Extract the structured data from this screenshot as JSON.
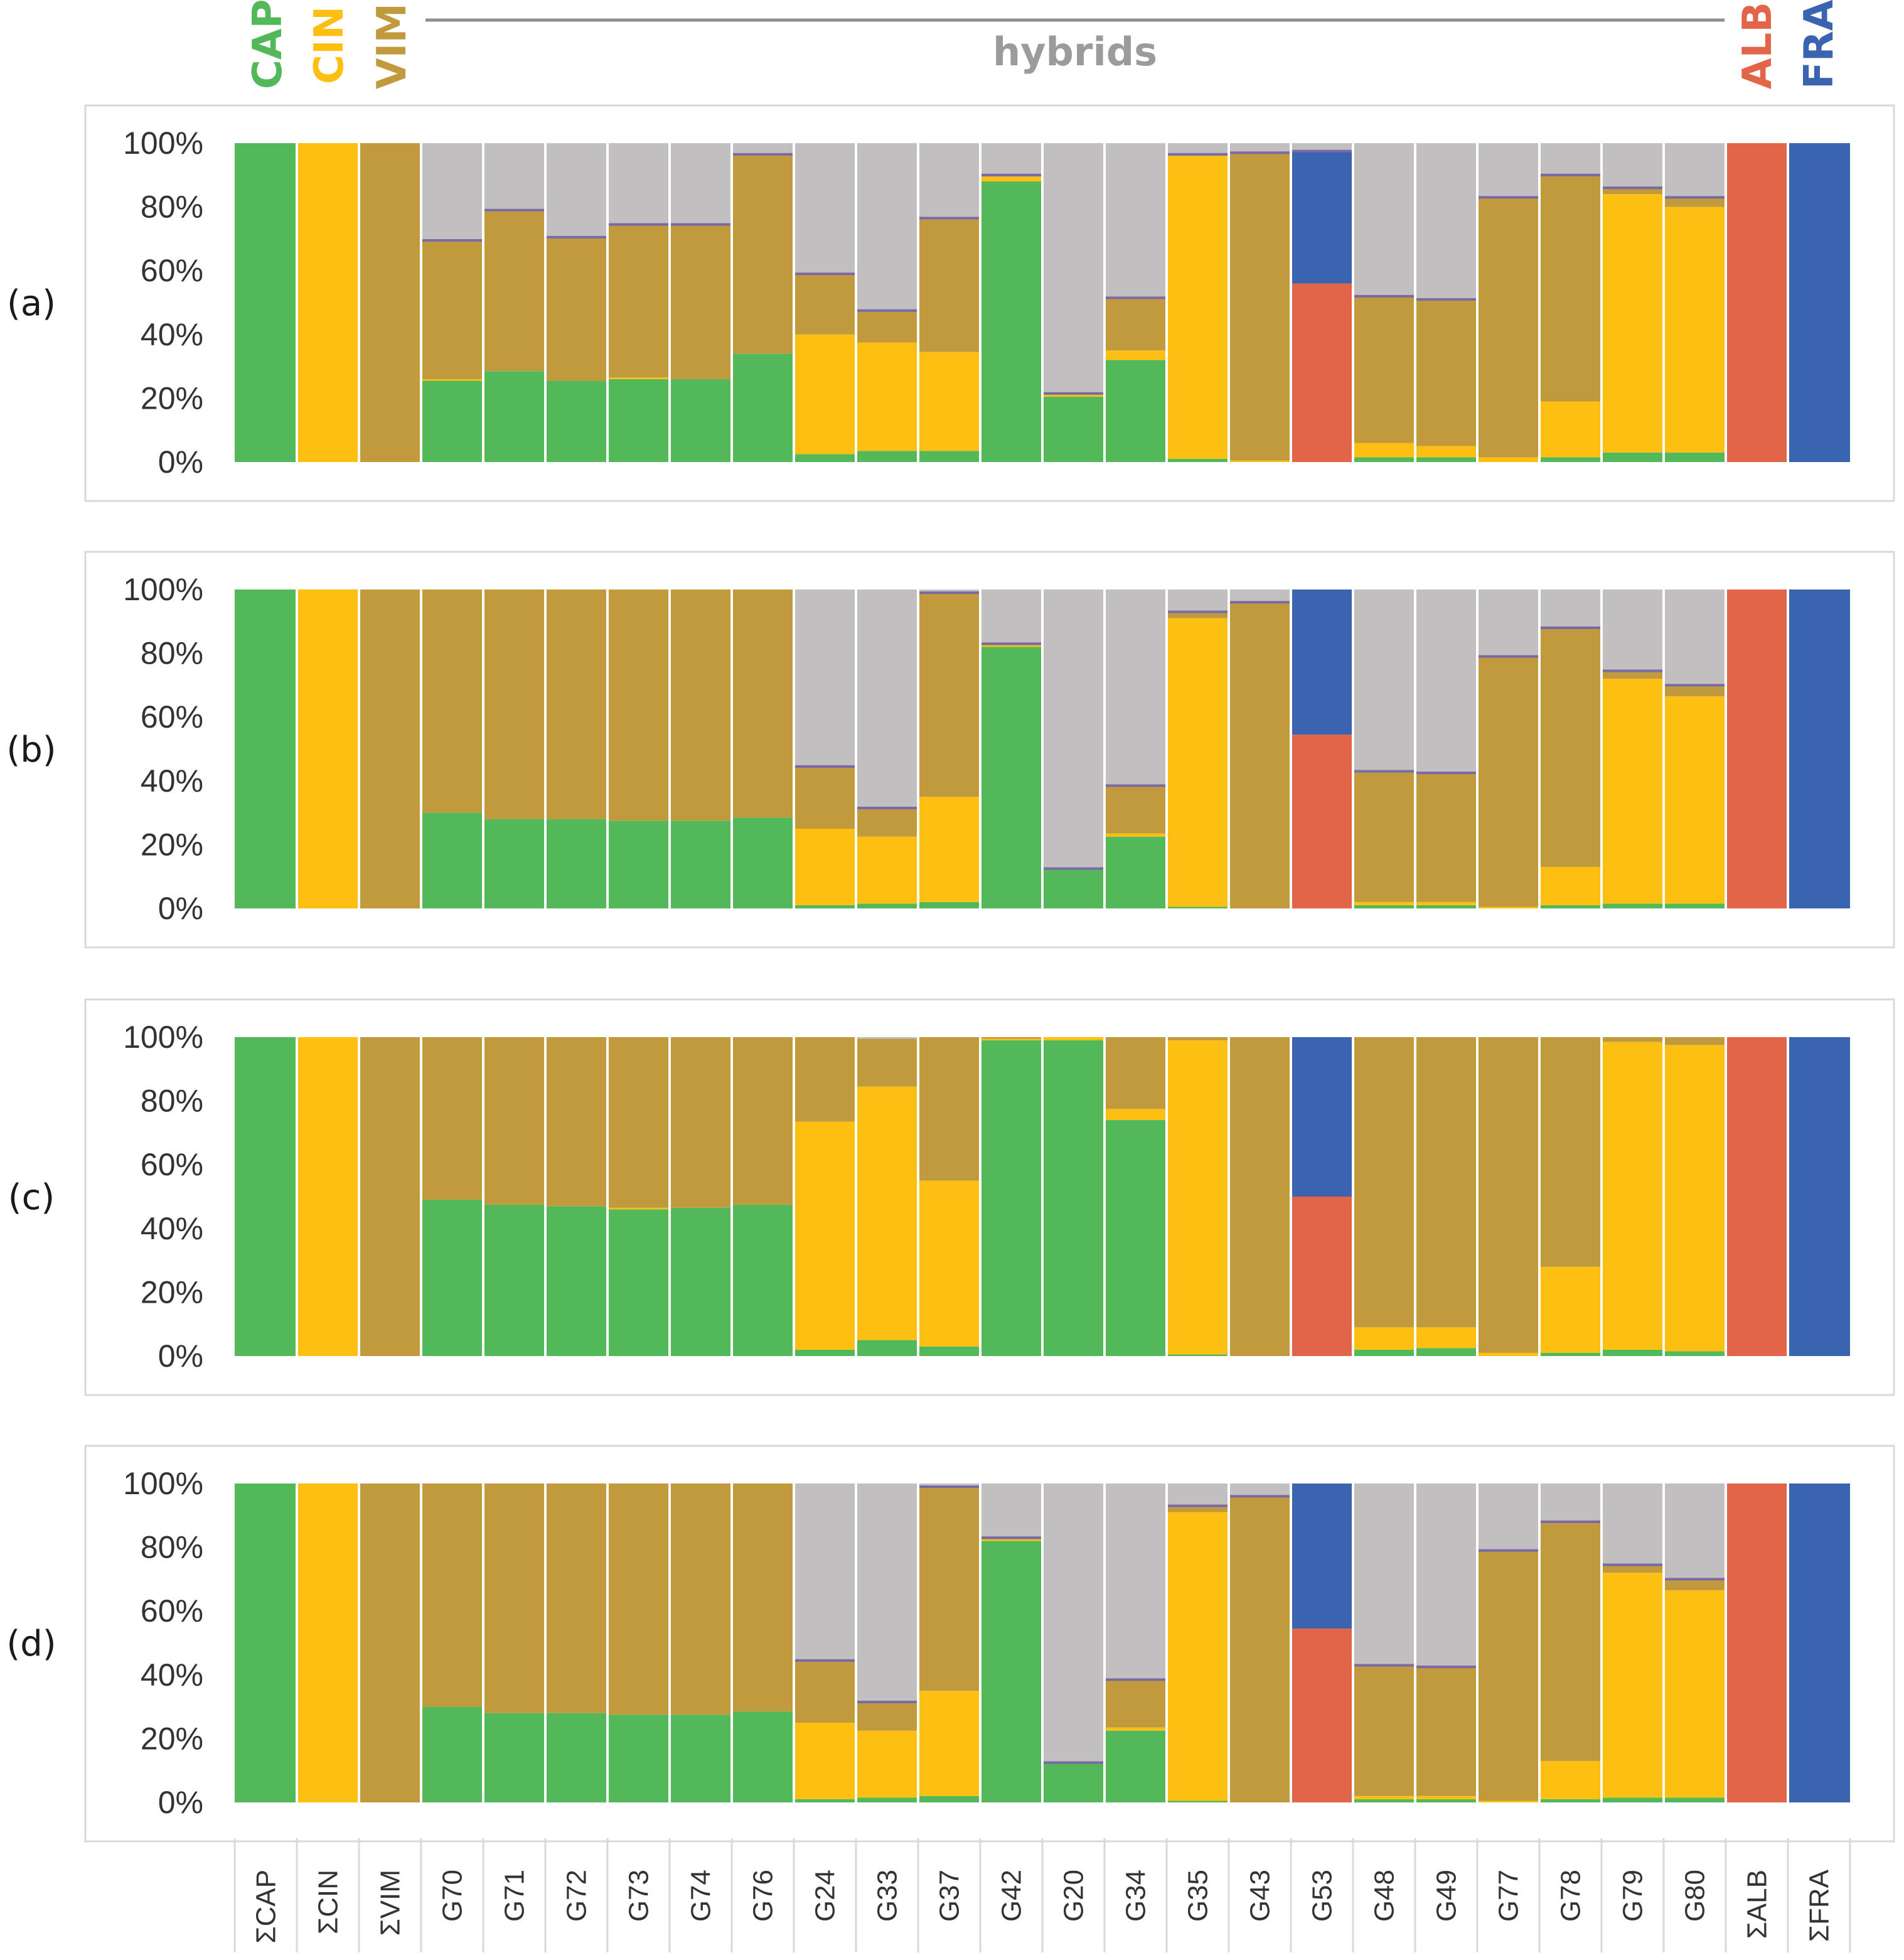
{
  "chart_data": {
    "type": "bar",
    "stacked": true,
    "ylim": [
      0,
      100
    ],
    "y_ticks": [
      "0%",
      "20%",
      "40%",
      "60%",
      "80%",
      "100%"
    ],
    "categories": [
      "ΣCAP",
      "ΣCIN",
      "ΣVIM",
      "G70",
      "G71",
      "G72",
      "G73",
      "G74",
      "G76",
      "G24",
      "G33",
      "G37",
      "G42",
      "G20",
      "G34",
      "G35",
      "G43",
      "G53",
      "G48",
      "G49",
      "G77",
      "G78",
      "G79",
      "G80",
      "ΣALB",
      "ΣFRA"
    ],
    "header": {
      "CAP": "CAP",
      "CIN": "CIN",
      "VIM": "VIM",
      "hybrids": "hybrids",
      "ALB": "ALB",
      "FRA": "FRA"
    },
    "colors": {
      "CAP": "#52b85a",
      "CIN": "#fcbf12",
      "VIM": "#c19a3e",
      "ALB": "#e2654a",
      "FRA": "#3a64af",
      "other": "#c2bfc0",
      "line": "#7b69a6"
    },
    "series_order": [
      "CAP",
      "CIN",
      "VIM",
      "ALB",
      "FRA",
      "other"
    ],
    "panels": [
      {
        "label": "(a)",
        "bars": [
          [
            100,
            0,
            0,
            0,
            0,
            0
          ],
          [
            0,
            100,
            0,
            0,
            0,
            0
          ],
          [
            0,
            0,
            100,
            0,
            0,
            0
          ],
          [
            25.5,
            0.5,
            43.5,
            0,
            0,
            30.5
          ],
          [
            28.5,
            0,
            50.5,
            0,
            0,
            21
          ],
          [
            25.5,
            0,
            45,
            0,
            0,
            29.5
          ],
          [
            26,
            0.5,
            48,
            0,
            0,
            25.5
          ],
          [
            26,
            0,
            48.5,
            0,
            0,
            25.5
          ],
          [
            34,
            0,
            62.5,
            0,
            0,
            3.5
          ],
          [
            2.5,
            37.5,
            19,
            0,
            0,
            41
          ],
          [
            3.5,
            34,
            10,
            0,
            0,
            52.5
          ],
          [
            3.5,
            31,
            42,
            0,
            0,
            23.5
          ],
          [
            88,
            1.5,
            0.5,
            0,
            0,
            10
          ],
          [
            20.5,
            1,
            0,
            0,
            0,
            78.5
          ],
          [
            32,
            3,
            16.5,
            0,
            0,
            48.5
          ],
          [
            1,
            95,
            0.5,
            0,
            0,
            3.5
          ],
          [
            0,
            0.5,
            96.5,
            0,
            0,
            3
          ],
          [
            0,
            0,
            0,
            56,
            41.5,
            2.5
          ],
          [
            1.5,
            4.5,
            46,
            0,
            0,
            48
          ],
          [
            1.5,
            3.5,
            46,
            0,
            0,
            49
          ],
          [
            0,
            1.5,
            81.5,
            0,
            0,
            17
          ],
          [
            1.5,
            17.5,
            71,
            0,
            0,
            10
          ],
          [
            3,
            81,
            2,
            0,
            0,
            14
          ],
          [
            3,
            77,
            3,
            0,
            0,
            17
          ],
          [
            0,
            0,
            0,
            100,
            0,
            0
          ],
          [
            0,
            0,
            0,
            0,
            100,
            0
          ]
        ]
      },
      {
        "label": "(b)",
        "bars": [
          [
            100,
            0,
            0,
            0,
            0,
            0
          ],
          [
            0,
            100,
            0,
            0,
            0,
            0
          ],
          [
            0,
            0,
            100,
            0,
            0,
            0
          ],
          [
            30,
            0,
            70,
            0,
            0,
            0
          ],
          [
            28,
            0,
            72,
            0,
            0,
            0
          ],
          [
            28,
            0,
            72,
            0,
            0,
            0
          ],
          [
            27.5,
            0,
            72.5,
            0,
            0,
            0
          ],
          [
            27.5,
            0,
            72.5,
            0,
            0,
            0
          ],
          [
            28.5,
            0,
            71.5,
            0,
            0,
            0
          ],
          [
            1,
            24,
            19.5,
            0,
            0,
            55.5
          ],
          [
            1.5,
            21,
            9,
            0,
            0,
            68.5
          ],
          [
            2,
            33,
            64,
            0,
            0,
            1
          ],
          [
            82,
            0.5,
            0.5,
            0,
            0,
            17
          ],
          [
            12.5,
            0,
            0,
            0,
            0,
            87.5
          ],
          [
            22.5,
            1,
            15,
            0,
            0,
            61.5
          ],
          [
            0.5,
            90.5,
            2,
            0,
            0,
            7
          ],
          [
            0,
            0,
            96,
            0,
            0,
            4
          ],
          [
            0,
            0,
            0,
            54.5,
            45.5,
            0
          ],
          [
            1,
            1,
            41,
            0,
            0,
            57
          ],
          [
            1,
            1,
            40.5,
            0,
            0,
            57.5
          ],
          [
            0,
            0.5,
            78.5,
            0,
            0,
            21
          ],
          [
            1,
            12,
            75,
            0,
            0,
            12
          ],
          [
            1.5,
            70.5,
            2.5,
            0,
            0,
            25.5
          ],
          [
            1.5,
            65,
            3.5,
            0,
            0,
            30
          ],
          [
            0,
            0,
            0,
            100,
            0,
            0
          ],
          [
            0,
            0,
            0,
            0,
            100,
            0
          ]
        ]
      },
      {
        "label": "(c)",
        "bars": [
          [
            100,
            0,
            0,
            0,
            0,
            0
          ],
          [
            0,
            100,
            0,
            0,
            0,
            0
          ],
          [
            0,
            0,
            100,
            0,
            0,
            0
          ],
          [
            49,
            0,
            51,
            0,
            0,
            0
          ],
          [
            47.5,
            0,
            52.5,
            0,
            0,
            0
          ],
          [
            47,
            0,
            53,
            0,
            0,
            0
          ],
          [
            46,
            0.5,
            53.5,
            0,
            0,
            0
          ],
          [
            46.5,
            0,
            53.5,
            0,
            0,
            0
          ],
          [
            47.5,
            0,
            52.5,
            0,
            0,
            0
          ],
          [
            2,
            71.5,
            26.5,
            0,
            0,
            0
          ],
          [
            5,
            79.5,
            15,
            0,
            0,
            0.5
          ],
          [
            3,
            52,
            45,
            0,
            0,
            0
          ],
          [
            99,
            0.5,
            0.5,
            0,
            0,
            0
          ],
          [
            99,
            1,
            0,
            0,
            0,
            0
          ],
          [
            74,
            3.5,
            22.5,
            0,
            0,
            0
          ],
          [
            0.5,
            98.5,
            1,
            0,
            0,
            0
          ],
          [
            0,
            0,
            100,
            0,
            0,
            0
          ],
          [
            0,
            0,
            0,
            50,
            50,
            0
          ],
          [
            2,
            7,
            91,
            0,
            0,
            0
          ],
          [
            2.5,
            6.5,
            91,
            0,
            0,
            0
          ],
          [
            0,
            1,
            99,
            0,
            0,
            0
          ],
          [
            1,
            27,
            72,
            0,
            0,
            0
          ],
          [
            2,
            96.5,
            1.5,
            0,
            0,
            0
          ],
          [
            1.5,
            96,
            2.5,
            0,
            0,
            0
          ],
          [
            0,
            0,
            0,
            100,
            0,
            0
          ],
          [
            0,
            0,
            0,
            0,
            100,
            0
          ]
        ]
      },
      {
        "label": "(d)",
        "bars": [
          [
            100,
            0,
            0,
            0,
            0,
            0
          ],
          [
            0,
            100,
            0,
            0,
            0,
            0
          ],
          [
            0,
            0,
            100,
            0,
            0,
            0
          ],
          [
            30,
            0,
            70,
            0,
            0,
            0
          ],
          [
            28,
            0,
            72,
            0,
            0,
            0
          ],
          [
            28,
            0,
            72,
            0,
            0,
            0
          ],
          [
            27.5,
            0,
            72.5,
            0,
            0,
            0
          ],
          [
            27.5,
            0,
            72.5,
            0,
            0,
            0
          ],
          [
            28.5,
            0,
            71.5,
            0,
            0,
            0
          ],
          [
            1,
            24,
            19.5,
            0,
            0,
            55.5
          ],
          [
            1.5,
            21,
            9,
            0,
            0,
            68.5
          ],
          [
            2,
            33,
            64,
            0,
            0,
            1
          ],
          [
            82,
            0.5,
            0.5,
            0,
            0,
            17
          ],
          [
            12.5,
            0,
            0,
            0,
            0,
            87.5
          ],
          [
            22.5,
            1,
            15,
            0,
            0,
            61.5
          ],
          [
            0.5,
            90.5,
            2,
            0,
            0,
            7
          ],
          [
            0,
            0,
            96,
            0,
            0,
            4
          ],
          [
            0,
            0,
            0,
            54.5,
            45.5,
            0
          ],
          [
            1,
            1,
            41,
            0,
            0,
            57
          ],
          [
            1,
            1,
            40.5,
            0,
            0,
            57.5
          ],
          [
            0,
            0.5,
            78.5,
            0,
            0,
            21
          ],
          [
            1,
            12,
            75,
            0,
            0,
            12
          ],
          [
            1.5,
            70.5,
            2.5,
            0,
            0,
            25.5
          ],
          [
            1.5,
            65,
            3.5,
            0,
            0,
            30
          ],
          [
            0,
            0,
            0,
            100,
            0,
            0
          ],
          [
            0,
            0,
            0,
            0,
            100,
            0
          ]
        ]
      }
    ]
  }
}
